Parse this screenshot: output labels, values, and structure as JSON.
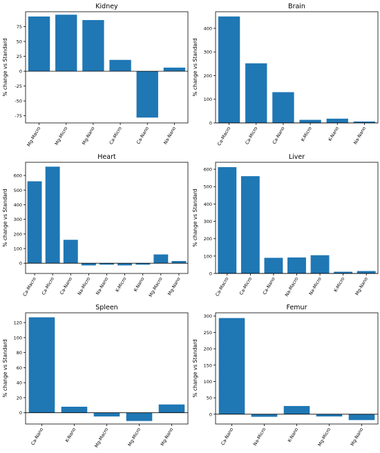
{
  "colors": {
    "bar": "#1f77b4",
    "axis": "#000000",
    "background": "#ffffff"
  },
  "chart_data": [
    {
      "type": "bar",
      "title": "Kidney",
      "ylabel": "% change vs Standard",
      "categories": [
        "Mg-Macro",
        "Mg-Micro",
        "Mg-Nano",
        "Ca-Micro",
        "Ca-Nano",
        "Na-Nano"
      ],
      "values": [
        92,
        95,
        86,
        19,
        -78,
        6
      ],
      "ylim": [
        -87,
        100
      ],
      "yticks": [
        -75,
        -50,
        -25,
        0,
        25,
        50,
        75
      ],
      "grid": false
    },
    {
      "type": "bar",
      "title": "Brain",
      "ylabel": "% change vs Standard",
      "categories": [
        "Ca-Macro",
        "Ca-Micro",
        "Ca-Nano",
        "K-Micro",
        "K-Nano",
        "Na-Nano"
      ],
      "values": [
        450,
        252,
        130,
        13,
        18,
        6
      ],
      "ylim": [
        0,
        470
      ],
      "yticks": [
        0,
        100,
        200,
        300,
        400
      ],
      "grid": false
    },
    {
      "type": "bar",
      "title": "Heart",
      "ylabel": "% change vs Standard",
      "categories": [
        "Ca-Macro",
        "Ca-Micro",
        "Ca-Nano",
        "Na-Micro",
        "Na-Nano",
        "K-Micro",
        "K-Nano",
        "Mg-Macro",
        "Mg-Nano"
      ],
      "values": [
        560,
        660,
        160,
        -15,
        -10,
        -15,
        -10,
        60,
        15
      ],
      "ylim": [
        -70,
        690
      ],
      "yticks": [
        0,
        100,
        200,
        300,
        400,
        500,
        600
      ],
      "grid": false
    },
    {
      "type": "bar",
      "title": "Liver",
      "ylabel": "% change vs Standard",
      "categories": [
        "Ca-Macro",
        "Ca-Micro",
        "Ca-Nano",
        "Na-Macro",
        "Na-Micro",
        "K-Micro",
        "Mg-Nano"
      ],
      "values": [
        612,
        560,
        90,
        92,
        105,
        10,
        14
      ],
      "ylim": [
        0,
        640
      ],
      "yticks": [
        0,
        100,
        200,
        300,
        400,
        500,
        600
      ],
      "grid": false
    },
    {
      "type": "bar",
      "title": "Spleen",
      "ylabel": "% change vs Standard",
      "categories": [
        "Ca-Nano",
        "K-Nano",
        "Mg-Macro",
        "Mg-Micro",
        "Mg-Nano"
      ],
      "values": [
        127,
        8,
        -5,
        -11,
        11
      ],
      "ylim": [
        -15,
        133
      ],
      "yticks": [
        0,
        20,
        40,
        60,
        80,
        100,
        120
      ],
      "grid": false
    },
    {
      "type": "bar",
      "title": "Femur",
      "ylabel": "% change vs Standard",
      "categories": [
        "Ca-Nano",
        "Na-Micro",
        "K-Nano",
        "Mg-Micro",
        "Mg-Nano"
      ],
      "values": [
        294,
        -8,
        25,
        -7,
        -18
      ],
      "ylim": [
        -30,
        310
      ],
      "yticks": [
        0,
        50,
        100,
        150,
        200,
        250,
        300
      ],
      "grid": false
    }
  ]
}
